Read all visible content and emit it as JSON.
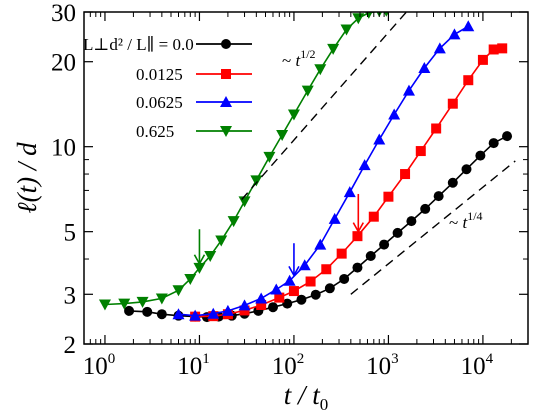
{
  "chart_data": {
    "type": "line",
    "title": "",
    "xlabel": "t / t0",
    "ylabel": "ℓ(t) / d",
    "xscale": "log",
    "yscale": "log",
    "xlim": [
      0.6,
      30000
    ],
    "ylim": [
      2,
      30
    ],
    "x_ticks": [
      {
        "value": 1,
        "base": "10",
        "exp": "0"
      },
      {
        "value": 10,
        "base": "10",
        "exp": "1"
      },
      {
        "value": 100,
        "base": "10",
        "exp": "2"
      },
      {
        "value": 1000,
        "base": "10",
        "exp": "3"
      },
      {
        "value": 10000,
        "base": "10",
        "exp": "4"
      }
    ],
    "y_ticks": [
      2,
      3,
      5,
      10,
      20,
      30
    ],
    "grid": false,
    "legend": {
      "position": "top-left",
      "prefix": "L⊥d² / L∥ = ",
      "entries": [
        "0.0",
        "0.0125",
        "0.0625",
        "0.625"
      ]
    },
    "series": [
      {
        "name": "0.0",
        "color": "#000000",
        "marker": "circle",
        "points": [
          [
            1.8,
            2.62
          ],
          [
            2.8,
            2.6
          ],
          [
            4,
            2.55
          ],
          [
            6,
            2.52
          ],
          [
            9,
            2.5
          ],
          [
            12,
            2.49
          ],
          [
            16,
            2.5
          ],
          [
            22,
            2.52
          ],
          [
            30,
            2.56
          ],
          [
            42,
            2.62
          ],
          [
            60,
            2.7
          ],
          [
            85,
            2.78
          ],
          [
            120,
            2.87
          ],
          [
            170,
            2.99
          ],
          [
            240,
            3.15
          ],
          [
            340,
            3.4
          ],
          [
            470,
            3.73
          ],
          [
            650,
            4.1
          ],
          [
            900,
            4.5
          ],
          [
            1250,
            4.95
          ],
          [
            1750,
            5.45
          ],
          [
            2450,
            6.02
          ],
          [
            3400,
            6.68
          ],
          [
            4800,
            7.45
          ],
          [
            6700,
            8.32
          ],
          [
            9400,
            9.3
          ],
          [
            13000,
            10.3
          ],
          [
            18000,
            10.9
          ]
        ]
      },
      {
        "name": "0.0125",
        "color": "#ff0000",
        "marker": "square",
        "points": [
          [
            9,
            2.5
          ],
          [
            14,
            2.51
          ],
          [
            20,
            2.55
          ],
          [
            30,
            2.63
          ],
          [
            45,
            2.75
          ],
          [
            70,
            2.92
          ],
          [
            100,
            3.08
          ],
          [
            150,
            3.33
          ],
          [
            220,
            3.68
          ],
          [
            320,
            4.18
          ],
          [
            470,
            4.82
          ],
          [
            700,
            5.65
          ],
          [
            1000,
            6.65
          ],
          [
            1500,
            8.0
          ],
          [
            2200,
            9.65
          ],
          [
            3200,
            11.6
          ],
          [
            4800,
            14.2
          ],
          [
            7000,
            17.2
          ],
          [
            10000,
            20.3
          ],
          [
            13000,
            22.1
          ],
          [
            16000,
            22.3
          ]
        ]
      },
      {
        "name": "0.0625",
        "color": "#0000ff",
        "marker": "triangle-up",
        "points": [
          [
            6,
            2.55
          ],
          [
            9,
            2.52
          ],
          [
            14,
            2.56
          ],
          [
            20,
            2.62
          ],
          [
            30,
            2.74
          ],
          [
            45,
            2.9
          ],
          [
            65,
            3.12
          ],
          [
            90,
            3.35
          ],
          [
            130,
            3.8
          ],
          [
            190,
            4.5
          ],
          [
            270,
            5.55
          ],
          [
            390,
            6.9
          ],
          [
            560,
            8.6
          ],
          [
            800,
            10.6
          ],
          [
            1150,
            13.0
          ],
          [
            1650,
            15.8
          ],
          [
            2400,
            19.0
          ],
          [
            3500,
            22.3
          ],
          [
            5000,
            25.0
          ],
          [
            7000,
            26.7
          ]
        ]
      },
      {
        "name": "0.625",
        "color": "#008000",
        "marker": "triangle-down",
        "points": [
          [
            1,
            2.76
          ],
          [
            1.6,
            2.78
          ],
          [
            2.5,
            2.82
          ],
          [
            4,
            2.9
          ],
          [
            6,
            3.1
          ],
          [
            8,
            3.4
          ],
          [
            10,
            3.72
          ],
          [
            13,
            4.1
          ],
          [
            17,
            4.65
          ],
          [
            23,
            5.45
          ],
          [
            30,
            6.4
          ],
          [
            40,
            7.6
          ],
          [
            55,
            9.2
          ],
          [
            75,
            11.0
          ],
          [
            100,
            13.0
          ],
          [
            140,
            15.8
          ],
          [
            190,
            18.8
          ],
          [
            260,
            22.2
          ],
          [
            360,
            26.0
          ],
          [
            480,
            28.5
          ],
          [
            620,
            29.8
          ],
          [
            800,
            30.2
          ],
          [
            950,
            30.3
          ]
        ]
      }
    ],
    "guides": [
      {
        "name": "slope-half",
        "points": [
          [
            28,
            6.5
          ],
          [
            1550,
            30
          ]
        ],
        "label": "~ t^{1/2}",
        "label_base": "~ t",
        "label_exp": "1/2"
      },
      {
        "name": "slope-quarter",
        "points": [
          [
            400,
            3.0
          ],
          [
            22000,
            8.9
          ]
        ],
        "label": "~ t^{1/4}",
        "label_base": "~ t",
        "label_exp": "1/4"
      }
    ],
    "arrows": [
      {
        "series": "0.625",
        "x": 10,
        "y_top": 5.1,
        "y_bottom": 3.85,
        "color": "#008000"
      },
      {
        "series": "0.0625",
        "x": 100,
        "y_top": 4.55,
        "y_bottom": 3.5,
        "color": "#0000ff"
      },
      {
        "series": "0.0125",
        "x": 480,
        "y_top": 6.8,
        "y_bottom": 5.0,
        "color": "#ff0000"
      }
    ]
  }
}
